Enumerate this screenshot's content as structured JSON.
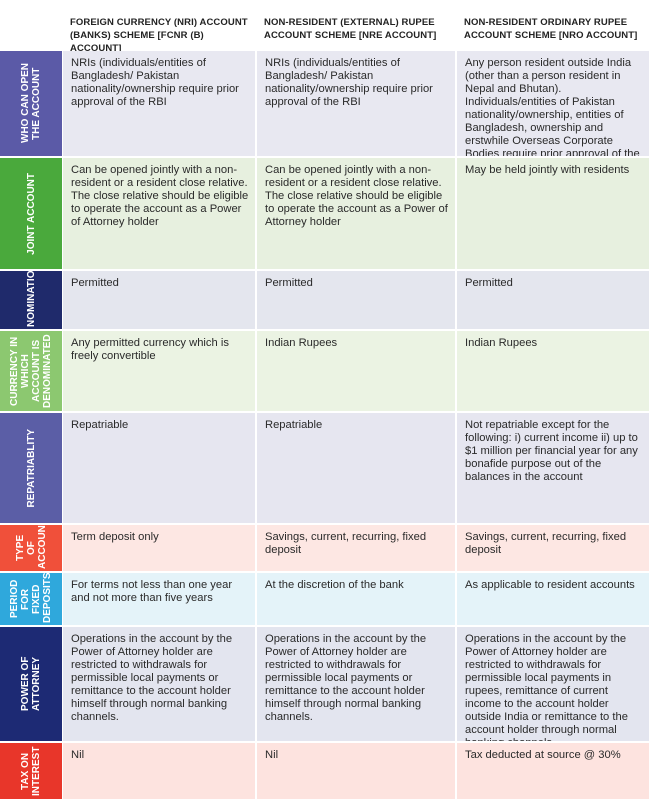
{
  "header": {
    "columns": [
      "FOREIGN CURRENCY (NRI) ACCOUNT (BANKS) SCHEME [FCNR (B) ACCOUNT]",
      "NON-RESIDENT (EXTERNAL) RUPEE ACCOUNT SCHEME [NRE ACCOUNT]",
      "NON-RESIDENT ORDINARY RUPEE ACCOUNT SCHEME [NRO ACCOUNT]"
    ]
  },
  "rows": [
    {
      "label": "WHO CAN OPEN THE ACCOUNT",
      "cells": [
        "NRIs (individuals/entities of Bangladesh/ Pakistan nationality/ownership require prior approval of the RBI",
        "NRIs (individuals/entities of Bangladesh/ Pakistan nationality/ownership require prior approval of the RBI",
        "Any person resident outside India (other than a person resident in Nepal and Bhutan). Individuals/entities of Pakistan nationality/ownership, entities of Bangladesh, ownership and erstwhile Overseas Corporate Bodies require prior approval of the RBI."
      ]
    },
    {
      "label": "JOINT ACCOUNT",
      "cells": [
        "Can be opened jointly with a non-resident or a resident close relative. The close relative should be eligible to operate the account as a Power of Attorney holder",
        "Can be opened jointly with a non-resident or a resident close relative. The close relative should be eligible to operate the account as a Power of Attorney holder",
        "May be held jointly with residents"
      ]
    },
    {
      "label": "NOMINATION",
      "cells": [
        "Permitted",
        "Permitted",
        "Permitted"
      ]
    },
    {
      "label": "CURRENCY IN WHICH ACCOUNT IS DENOMINATED",
      "cells": [
        "Any permitted currency which is freely convertible",
        "Indian Rupees",
        "Indian Rupees"
      ]
    },
    {
      "label": "REPATRIABLITY",
      "cells": [
        "Repatriable",
        "Repatriable",
        "Not repatriable except for the following: i) current income ii) up to $1 million per financial year for any bonafide purpose out of the balances in the account"
      ]
    },
    {
      "label": "TYPE OF ACCOUNT",
      "cells": [
        "Term deposit only",
        "Savings, current, recurring, fixed deposit",
        "Savings, current, recurring, fixed deposit"
      ]
    },
    {
      "label": "PERIOD FOR FIXED DEPOSITS",
      "cells": [
        "For terms not less than one year and not more than five years",
        "At the discretion of the bank",
        "As applicable to resident accounts"
      ]
    },
    {
      "label": "POWER OF ATTORNEY",
      "cells": [
        "Operations in the account by the Power of Attorney holder are restricted to withdrawals for permissible local payments or remittance to the account holder himself through normal banking channels.",
        "Operations in the account by the Power of Attorney holder are restricted to withdrawals for permissible local payments or remittance to the account holder himself through normal banking channels.",
        "Operations in the account by the Power of Attorney holder are restricted to withdrawals for permissible local payments in rupees, remittance of current income to the account holder outside India or remittance to the account holder through normal banking channels."
      ]
    },
    {
      "label": "TAX ON INTEREST",
      "cells": [
        "Nil",
        "Nil",
        "Tax deducted at source @ 30%"
      ]
    }
  ]
}
